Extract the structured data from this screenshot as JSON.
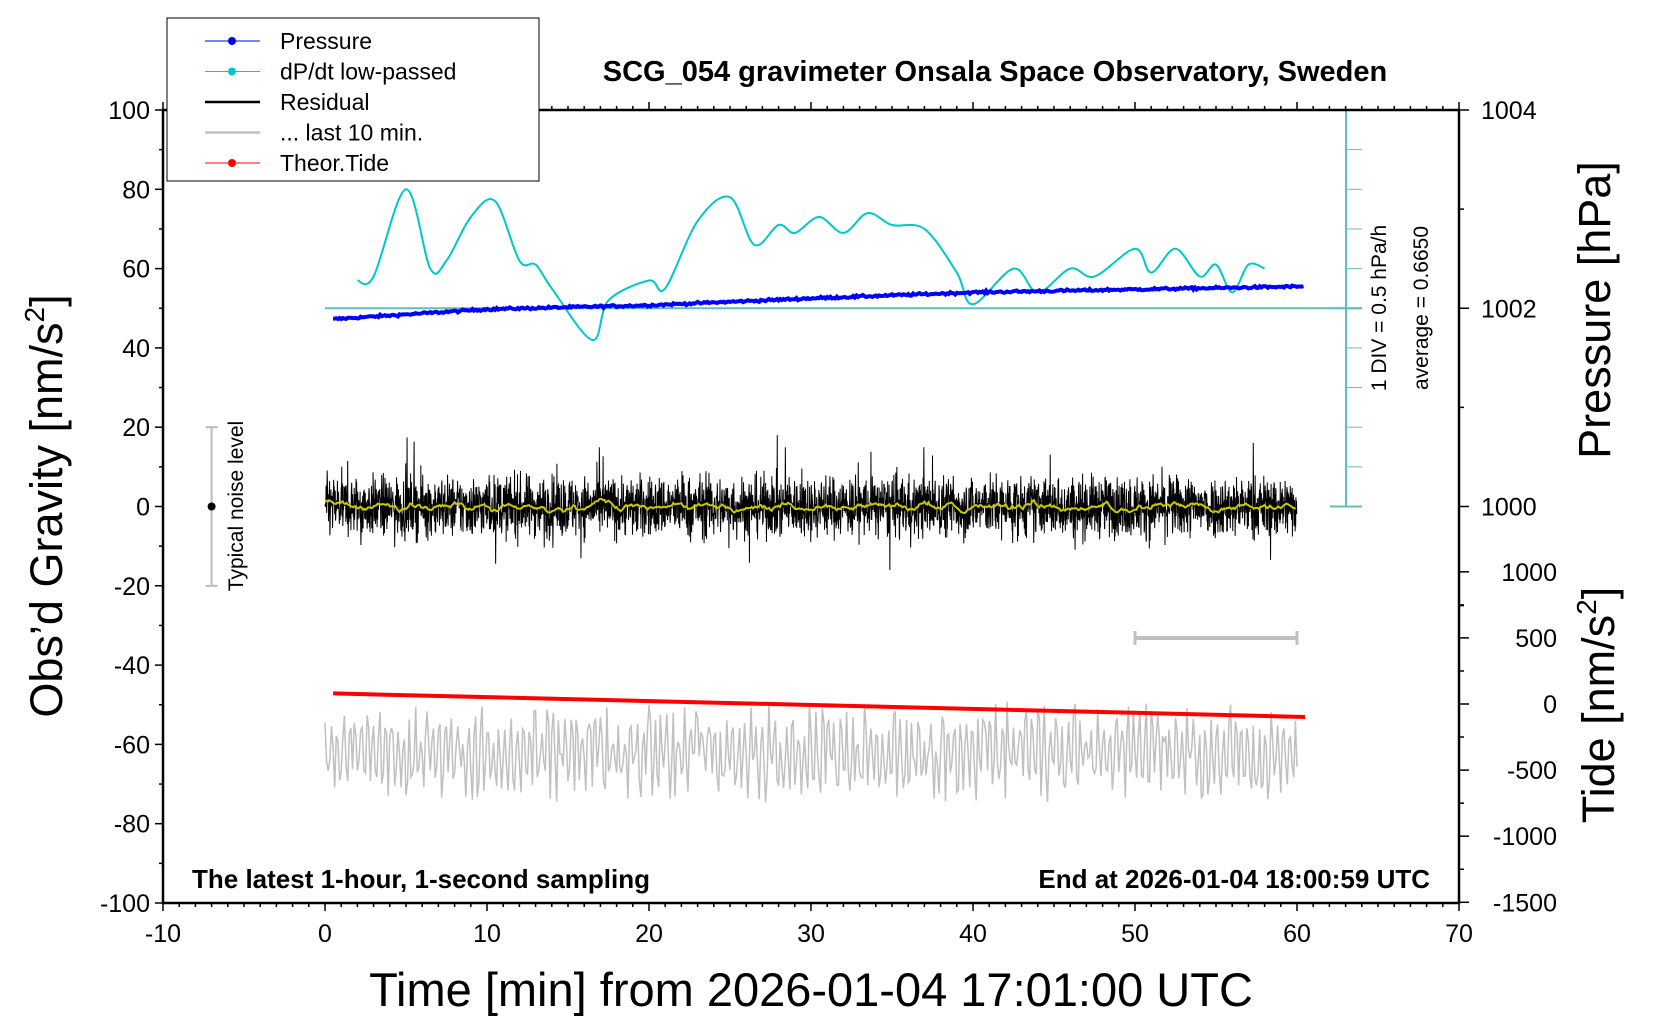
{
  "chart_data": {
    "type": "line",
    "title": "SCG_054 gravimeter Onsala Space Observatory, Sweden",
    "xlabel": "Time [min] from 2026-01-04 17:01:00 UTC",
    "ylabel_left": {
      "main": "Obs’d Gravity [nm/s",
      "sup": "2",
      "end": "]"
    },
    "ylabel_right_pressure": "Pressure [hPa]",
    "ylabel_right_tide": {
      "main": "Tide [nm/s",
      "sup": "2",
      "end": "]"
    },
    "xlim": [
      -10,
      70
    ],
    "ylim": [
      -100,
      100
    ],
    "x_ticks": [
      "-10",
      "0",
      "10",
      "20",
      "30",
      "40",
      "50",
      "60",
      "70"
    ],
    "y_ticks": [
      "100",
      "80",
      "60",
      "40",
      "20",
      "0",
      "-20",
      "-40",
      "-60",
      "-80",
      "-100"
    ],
    "pressure_ticks": [
      "1004",
      "1002",
      "1000"
    ],
    "tide_ticks": [
      "1000",
      "500",
      "0",
      "-500",
      "-1000",
      "-1500"
    ],
    "annotation_left": "The latest 1-hour, 1-second sampling",
    "annotation_right": "End at 2026-01-04 18:00:59 UTC",
    "noise_label": "Typical noise level",
    "noise_level": {
      "x": -7,
      "center": 0,
      "half_range": 20
    },
    "dpdt_scale": {
      "div_label": "1 DIV = 0.5 hPa/h",
      "average_label": "average = 0.6650",
      "per_div": 0.5,
      "average": 0.665
    },
    "legend": [
      {
        "label": "Pressure",
        "color": "#0000ff",
        "marker": true
      },
      {
        "label": "dP/dt low-passed",
        "color": "#00c8c8",
        "marker": true
      },
      {
        "label": "Residual",
        "color": "#000000",
        "marker": false
      },
      {
        "label": "... last 10 min.",
        "color": "#c0c0c0",
        "marker": false
      },
      {
        "label": "Theor.Tide",
        "color": "#ff0000",
        "marker": true
      }
    ],
    "series": {
      "pressure": {
        "name": "Pressure",
        "unit": "hPa",
        "t": [
          0.5,
          10,
          20,
          30,
          40,
          50,
          60.5
        ],
        "values": [
          1001.89,
          1001.99,
          1002.03,
          1002.1,
          1002.16,
          1002.19,
          1002.22
        ]
      },
      "dpdt": {
        "name": "dP/dt low-passed",
        "unit": "hPa/h",
        "t": [
          2,
          3,
          5,
          6.5,
          7.5,
          9,
          10.5,
          12,
          13,
          14,
          16.5,
          17.5,
          20,
          21,
          23,
          25,
          26.5,
          28,
          29,
          30.5,
          32,
          33.5,
          35,
          37,
          39,
          40,
          42.5,
          44,
          46,
          47.5,
          50,
          51,
          52.5,
          54,
          55,
          56,
          57,
          58
        ],
        "values": [
          1.015,
          1.065,
          2.165,
          1.165,
          1.265,
          1.815,
          2.015,
          1.265,
          1.215,
          0.915,
          0.265,
          0.765,
          1.015,
          0.915,
          1.765,
          2.065,
          1.465,
          1.715,
          1.615,
          1.815,
          1.615,
          1.865,
          1.715,
          1.665,
          1.115,
          0.715,
          1.165,
          0.865,
          1.165,
          1.065,
          1.415,
          1.115,
          1.415,
          1.065,
          1.215,
          0.865,
          1.215,
          1.165
        ]
      },
      "residual": {
        "name": "Residual",
        "unit": "nm/s2",
        "t_range": [
          0,
          60
        ],
        "mean": 0,
        "std": 5,
        "min": -17,
        "max": 18
      },
      "last10": {
        "name": "... last 10 min.",
        "offset": -62,
        "amplitude": 10,
        "scale_bar_minutes": [
          50,
          60
        ]
      },
      "tide": {
        "name": "Theor.Tide",
        "unit": "nm/s2",
        "t": [
          0.5,
          60.5
        ],
        "values": [
          80,
          -98
        ]
      }
    },
    "colors": {
      "pressure": "#0000ff",
      "dpdt": "#00c8c8",
      "dpdt_axis": "#5fbfbf",
      "residual": "#000000",
      "smoothed": "#c8c800",
      "last10": "#c0c0c0",
      "tide": "#ff0000"
    }
  }
}
